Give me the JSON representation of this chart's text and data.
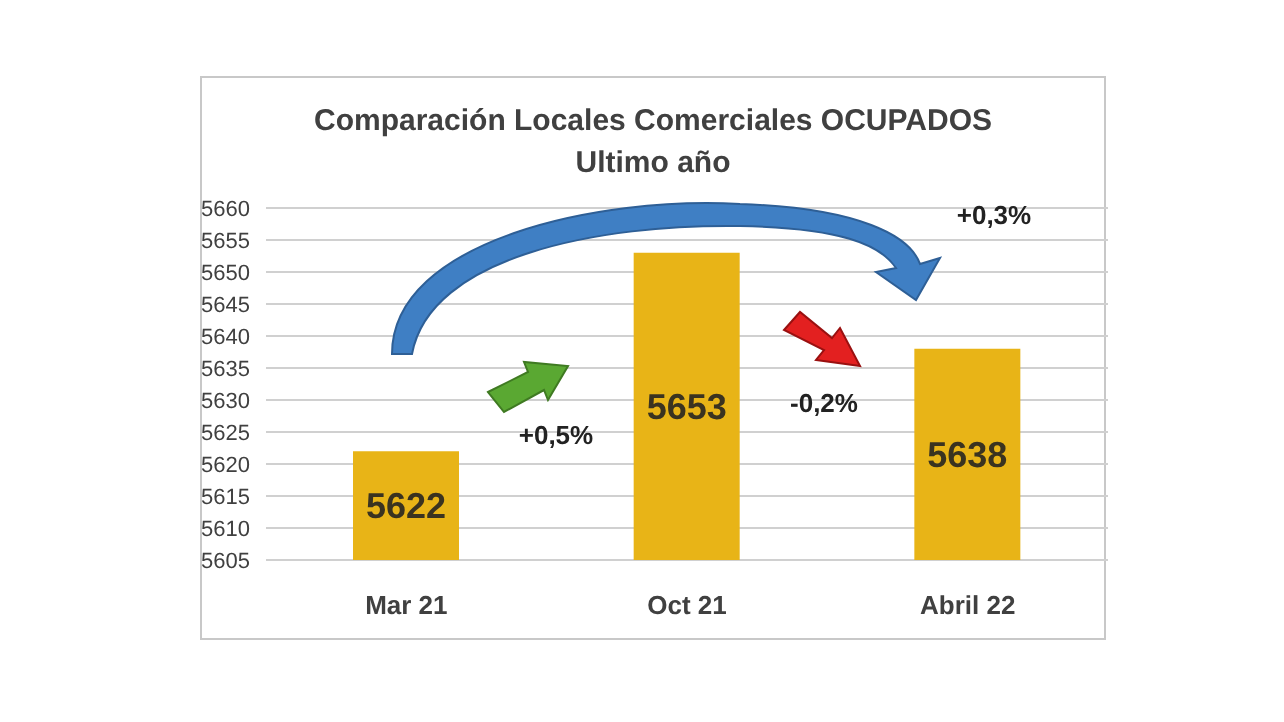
{
  "chart_data": {
    "type": "bar",
    "title": "Comparación Locales Comerciales OCUPADOS",
    "subtitle": "Ultimo año",
    "categories": [
      "Mar 21",
      "Oct 21",
      "Abril 22"
    ],
    "values": [
      5622,
      5653,
      5638
    ],
    "color": "#e8b417",
    "ylim": [
      5605,
      5660
    ],
    "yticks": [
      5605,
      5610,
      5615,
      5620,
      5625,
      5630,
      5635,
      5640,
      5645,
      5650,
      5655,
      5660
    ],
    "grid": "y",
    "data_labels": true,
    "annotations": [
      "+0,5%",
      "-0,2%",
      "+0,3%"
    ]
  }
}
